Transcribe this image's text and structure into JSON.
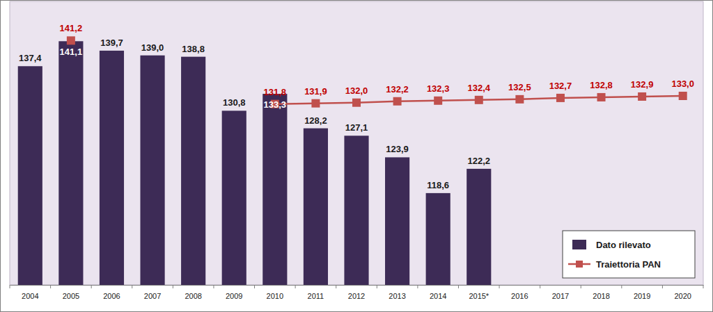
{
  "chart_data": {
    "type": "bar",
    "categories": [
      "2004",
      "2005",
      "2006",
      "2007",
      "2008",
      "2009",
      "2010",
      "2011",
      "2012",
      "2013",
      "2014",
      "2015*",
      "2016",
      "2017",
      "2018",
      "2019",
      "2020"
    ],
    "series": [
      {
        "name": "Dato rilevato",
        "type": "bar",
        "color": "#3d2b56",
        "values": [
          137.4,
          141.1,
          139.7,
          139.0,
          138.8,
          130.8,
          133.3,
          128.2,
          127.1,
          123.9,
          118.6,
          122.2,
          null,
          null,
          null,
          null,
          null
        ],
        "value_labels": [
          "137,4",
          "141,1",
          "139,7",
          "139,0",
          "138,8",
          "130,8",
          "133,3",
          "128,2",
          "127,1",
          "123,9",
          "118,6",
          "122,2",
          null,
          null,
          null,
          null,
          null
        ]
      },
      {
        "name": "Traiettoria PAN",
        "type": "line",
        "color": "#c0504d",
        "marker": "square",
        "line_style": "solid",
        "values": [
          null,
          141.2,
          null,
          null,
          null,
          null,
          131.8,
          131.9,
          132.0,
          132.2,
          132.3,
          132.4,
          132.5,
          132.7,
          132.8,
          132.9,
          133.0
        ],
        "value_labels": [
          null,
          "141,2",
          null,
          null,
          null,
          null,
          "131,8",
          "131,9",
          "132,0",
          "132,2",
          "132,3",
          "132,4",
          "132,5",
          "132,7",
          "132,8",
          "132,9",
          "133,0"
        ]
      }
    ],
    "ylim": [
      105,
      147
    ],
    "data_labels": true,
    "tick_labels": "x",
    "legend": "lower right",
    "grid": false
  }
}
